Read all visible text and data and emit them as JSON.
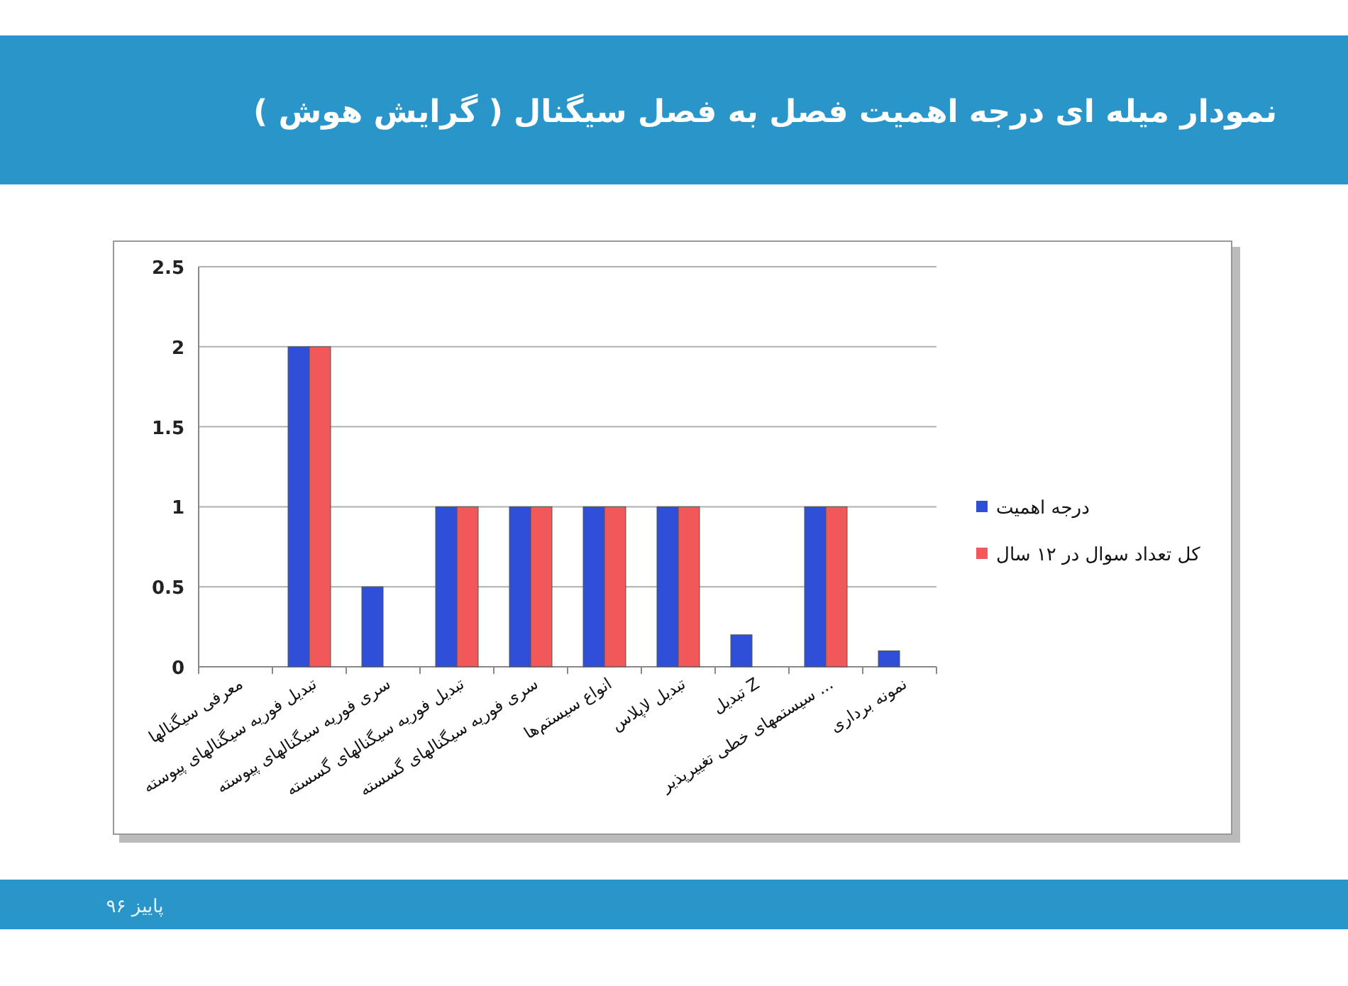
{
  "chart_data": {
    "type": "bar",
    "title": "نمودار میله ای  درجه اهمیت فصل به فصل سیگنال ( گرایش هوش )",
    "annotations": [
      "پاییز ۹۶"
    ],
    "categories": [
      "معرفی سیگنالها",
      "تبدیل فوریه سیگنالهای پیوسته",
      "سری فوریه سیگنالهای پیوسته",
      "تبدیل فوریه سیگنالهای گسسته",
      "سری فوریه سیگنالهای گسسته",
      "انواع سیستم‌ها",
      "تبدیل لاپلاس",
      "تبدیل Z",
      "سیستمهای خطی تغییرپذیر ...",
      "نمونه برداری"
    ],
    "series": [
      {
        "name": "درجه اهمیت",
        "color": "#2f4fd8",
        "values": [
          0,
          2,
          0.5,
          1,
          1,
          1,
          1,
          0.2,
          1,
          0.1
        ]
      },
      {
        "name": "کل تعداد سوال در ۱۲ سال",
        "color": "#f0585a",
        "values": [
          0,
          2,
          0,
          1,
          1,
          1,
          1,
          0,
          1,
          0
        ]
      }
    ],
    "ylim": [
      0,
      2.5
    ],
    "yticks": [
      0,
      0.5,
      1,
      1.5,
      2,
      2.5
    ],
    "grid": "y",
    "legend": "right"
  }
}
